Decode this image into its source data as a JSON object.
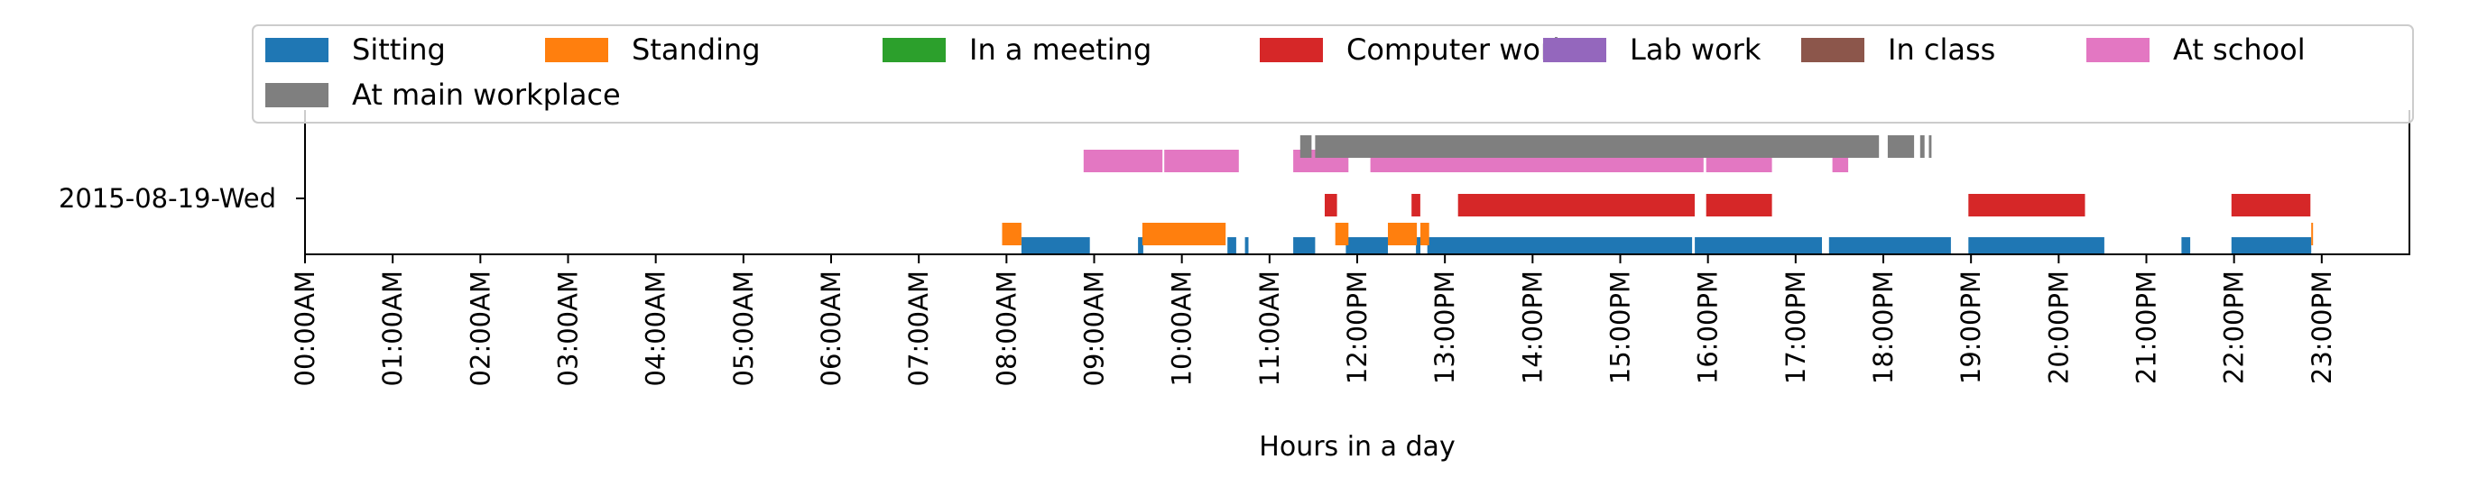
{
  "chart_data": {
    "type": "timeline",
    "title": "",
    "xlabel": "Hours in a day",
    "ylabel": "",
    "xlim": [
      0,
      24
    ],
    "row_label": "2015-08-19-Wed",
    "x_ticks": [
      "00:00AM",
      "01:00AM",
      "02:00AM",
      "03:00AM",
      "04:00AM",
      "05:00AM",
      "06:00AM",
      "07:00AM",
      "08:00AM",
      "09:00AM",
      "10:00AM",
      "11:00AM",
      "12:00PM",
      "13:00PM",
      "14:00PM",
      "15:00PM",
      "16:00PM",
      "17:00PM",
      "18:00PM",
      "19:00PM",
      "20:00PM",
      "21:00PM",
      "22:00PM",
      "23:00PM"
    ],
    "legend_location": "upper-center",
    "series": [
      {
        "name": "Sitting",
        "color": "#1f77b4",
        "intervals": [
          [
            8.17,
            8.95
          ],
          [
            9.5,
            9.56
          ],
          [
            10.52,
            10.62
          ],
          [
            10.72,
            10.76
          ],
          [
            11.27,
            11.52
          ],
          [
            11.87,
            12.35
          ],
          [
            12.67,
            12.72
          ],
          [
            12.8,
            15.82
          ],
          [
            15.85,
            17.3
          ],
          [
            17.38,
            18.77
          ],
          [
            18.97,
            20.52
          ],
          [
            21.4,
            21.5
          ],
          [
            21.97,
            22.88
          ]
        ]
      },
      {
        "name": "Standing",
        "color": "#ff7f0e",
        "intervals": [
          [
            7.95,
            8.17
          ],
          [
            9.55,
            10.5
          ],
          [
            11.75,
            11.9
          ],
          [
            12.35,
            12.68
          ],
          [
            12.72,
            12.82
          ],
          [
            22.88,
            22.9
          ]
        ]
      },
      {
        "name": "In a meeting",
        "color": "#2ca02c",
        "intervals": []
      },
      {
        "name": "Computer work",
        "color": "#d62728",
        "intervals": [
          [
            11.63,
            11.77
          ],
          [
            12.62,
            12.72
          ],
          [
            13.15,
            15.85
          ],
          [
            15.98,
            16.73
          ],
          [
            18.97,
            20.3
          ],
          [
            21.97,
            22.87
          ]
        ]
      },
      {
        "name": "Lab work",
        "color": "#9467bd",
        "intervals": []
      },
      {
        "name": "In class",
        "color": "#8c564b",
        "intervals": []
      },
      {
        "name": "At school",
        "color": "#e377c2",
        "intervals": [
          [
            8.88,
            9.78
          ],
          [
            9.8,
            10.65
          ],
          [
            11.27,
            11.9
          ],
          [
            12.15,
            15.95
          ],
          [
            15.98,
            16.73
          ],
          [
            17.42,
            17.6
          ]
        ]
      },
      {
        "name": "At main workplace",
        "color": "#7f7f7f",
        "intervals": [
          [
            11.35,
            11.48
          ],
          [
            11.52,
            17.95
          ],
          [
            18.05,
            18.35
          ],
          [
            18.42,
            18.47
          ],
          [
            18.52,
            18.55
          ]
        ]
      }
    ]
  }
}
